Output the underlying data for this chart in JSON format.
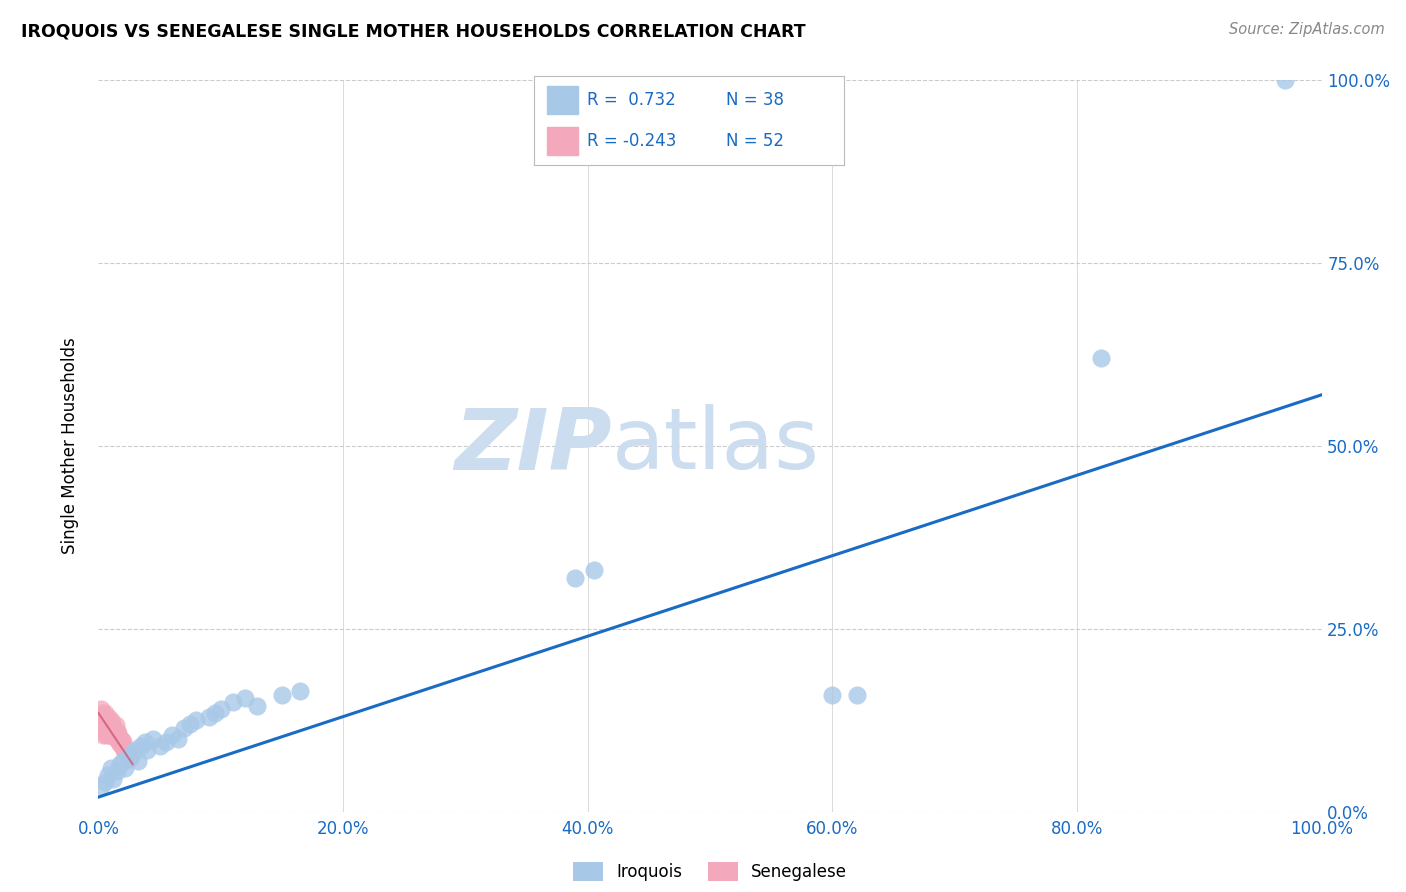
{
  "title": "IROQUOIS VS SENEGALESE SINGLE MOTHER HOUSEHOLDS CORRELATION CHART",
  "source": "Source: ZipAtlas.com",
  "ylabel": "Single Mother Households",
  "xlim": [
    0.0,
    1.0
  ],
  "ylim": [
    0.0,
    1.0
  ],
  "xticks": [
    0.0,
    0.2,
    0.4,
    0.6,
    0.8,
    1.0
  ],
  "yticks": [
    0.0,
    0.25,
    0.5,
    0.75,
    1.0
  ],
  "xtick_labels": [
    "0.0%",
    "20.0%",
    "40.0%",
    "60.0%",
    "80.0%",
    "100.0%"
  ],
  "ytick_labels": [
    "0.0%",
    "25.0%",
    "50.0%",
    "75.0%",
    "100.0%"
  ],
  "iroquois_color": "#a8c8e8",
  "senegalese_color": "#f4a8bc",
  "trendline_color_iroquois": "#1a6bc4",
  "trendline_color_senegalese": "#d05878",
  "legend_text_color": "#1a6bc4",
  "watermark_zip": "ZIP",
  "watermark_atlas": "atlas",
  "watermark_color": "#ccddf0",
  "background_color": "#ffffff",
  "grid_color": "#cccccc",
  "legend_r_iroquois": "R =  0.732",
  "legend_n_iroquois": "N = 38",
  "legend_r_senegalese": "R = -0.243",
  "legend_n_senegalese": "N = 52",
  "iroquois_x": [
    0.002,
    0.005,
    0.008,
    0.01,
    0.012,
    0.015,
    0.018,
    0.02,
    0.022,
    0.025,
    0.028,
    0.03,
    0.032,
    0.035,
    0.038,
    0.04,
    0.045,
    0.05,
    0.055,
    0.06,
    0.065,
    0.07,
    0.075,
    0.08,
    0.09,
    0.095,
    0.1,
    0.11,
    0.12,
    0.13,
    0.15,
    0.165,
    0.39,
    0.405,
    0.6,
    0.62,
    0.82,
    0.97
  ],
  "iroquois_y": [
    0.035,
    0.04,
    0.05,
    0.06,
    0.045,
    0.055,
    0.065,
    0.07,
    0.06,
    0.075,
    0.08,
    0.085,
    0.07,
    0.09,
    0.095,
    0.085,
    0.1,
    0.09,
    0.095,
    0.105,
    0.1,
    0.115,
    0.12,
    0.125,
    0.13,
    0.135,
    0.14,
    0.15,
    0.155,
    0.145,
    0.16,
    0.165,
    0.32,
    0.33,
    0.16,
    0.16,
    0.62,
    1.0
  ],
  "senegalese_x": [
    0.001,
    0.001,
    0.002,
    0.002,
    0.002,
    0.003,
    0.003,
    0.003,
    0.004,
    0.004,
    0.004,
    0.005,
    0.005,
    0.005,
    0.006,
    0.006,
    0.006,
    0.007,
    0.007,
    0.008,
    0.008,
    0.008,
    0.009,
    0.009,
    0.01,
    0.01,
    0.01,
    0.011,
    0.011,
    0.012,
    0.012,
    0.013,
    0.013,
    0.014,
    0.014,
    0.015,
    0.015,
    0.016,
    0.016,
    0.017,
    0.018,
    0.018,
    0.019,
    0.019,
    0.02,
    0.02,
    0.021,
    0.022,
    0.023,
    0.024,
    0.025,
    0.026
  ],
  "senegalese_y": [
    0.12,
    0.13,
    0.11,
    0.125,
    0.14,
    0.115,
    0.125,
    0.135,
    0.105,
    0.115,
    0.13,
    0.11,
    0.12,
    0.135,
    0.105,
    0.115,
    0.125,
    0.108,
    0.118,
    0.11,
    0.12,
    0.13,
    0.105,
    0.118,
    0.108,
    0.115,
    0.125,
    0.11,
    0.12,
    0.105,
    0.115,
    0.102,
    0.112,
    0.108,
    0.118,
    0.1,
    0.11,
    0.098,
    0.108,
    0.095,
    0.092,
    0.1,
    0.09,
    0.098,
    0.088,
    0.095,
    0.085,
    0.082,
    0.08,
    0.078,
    0.075,
    0.072
  ],
  "trend_iq_x0": 0.0,
  "trend_iq_x1": 1.0,
  "trend_iq_y0": 0.02,
  "trend_iq_y1": 0.57,
  "trend_sen_x0": 0.0,
  "trend_sen_x1": 0.028,
  "trend_sen_y0": 0.135,
  "trend_sen_y1": 0.065
}
